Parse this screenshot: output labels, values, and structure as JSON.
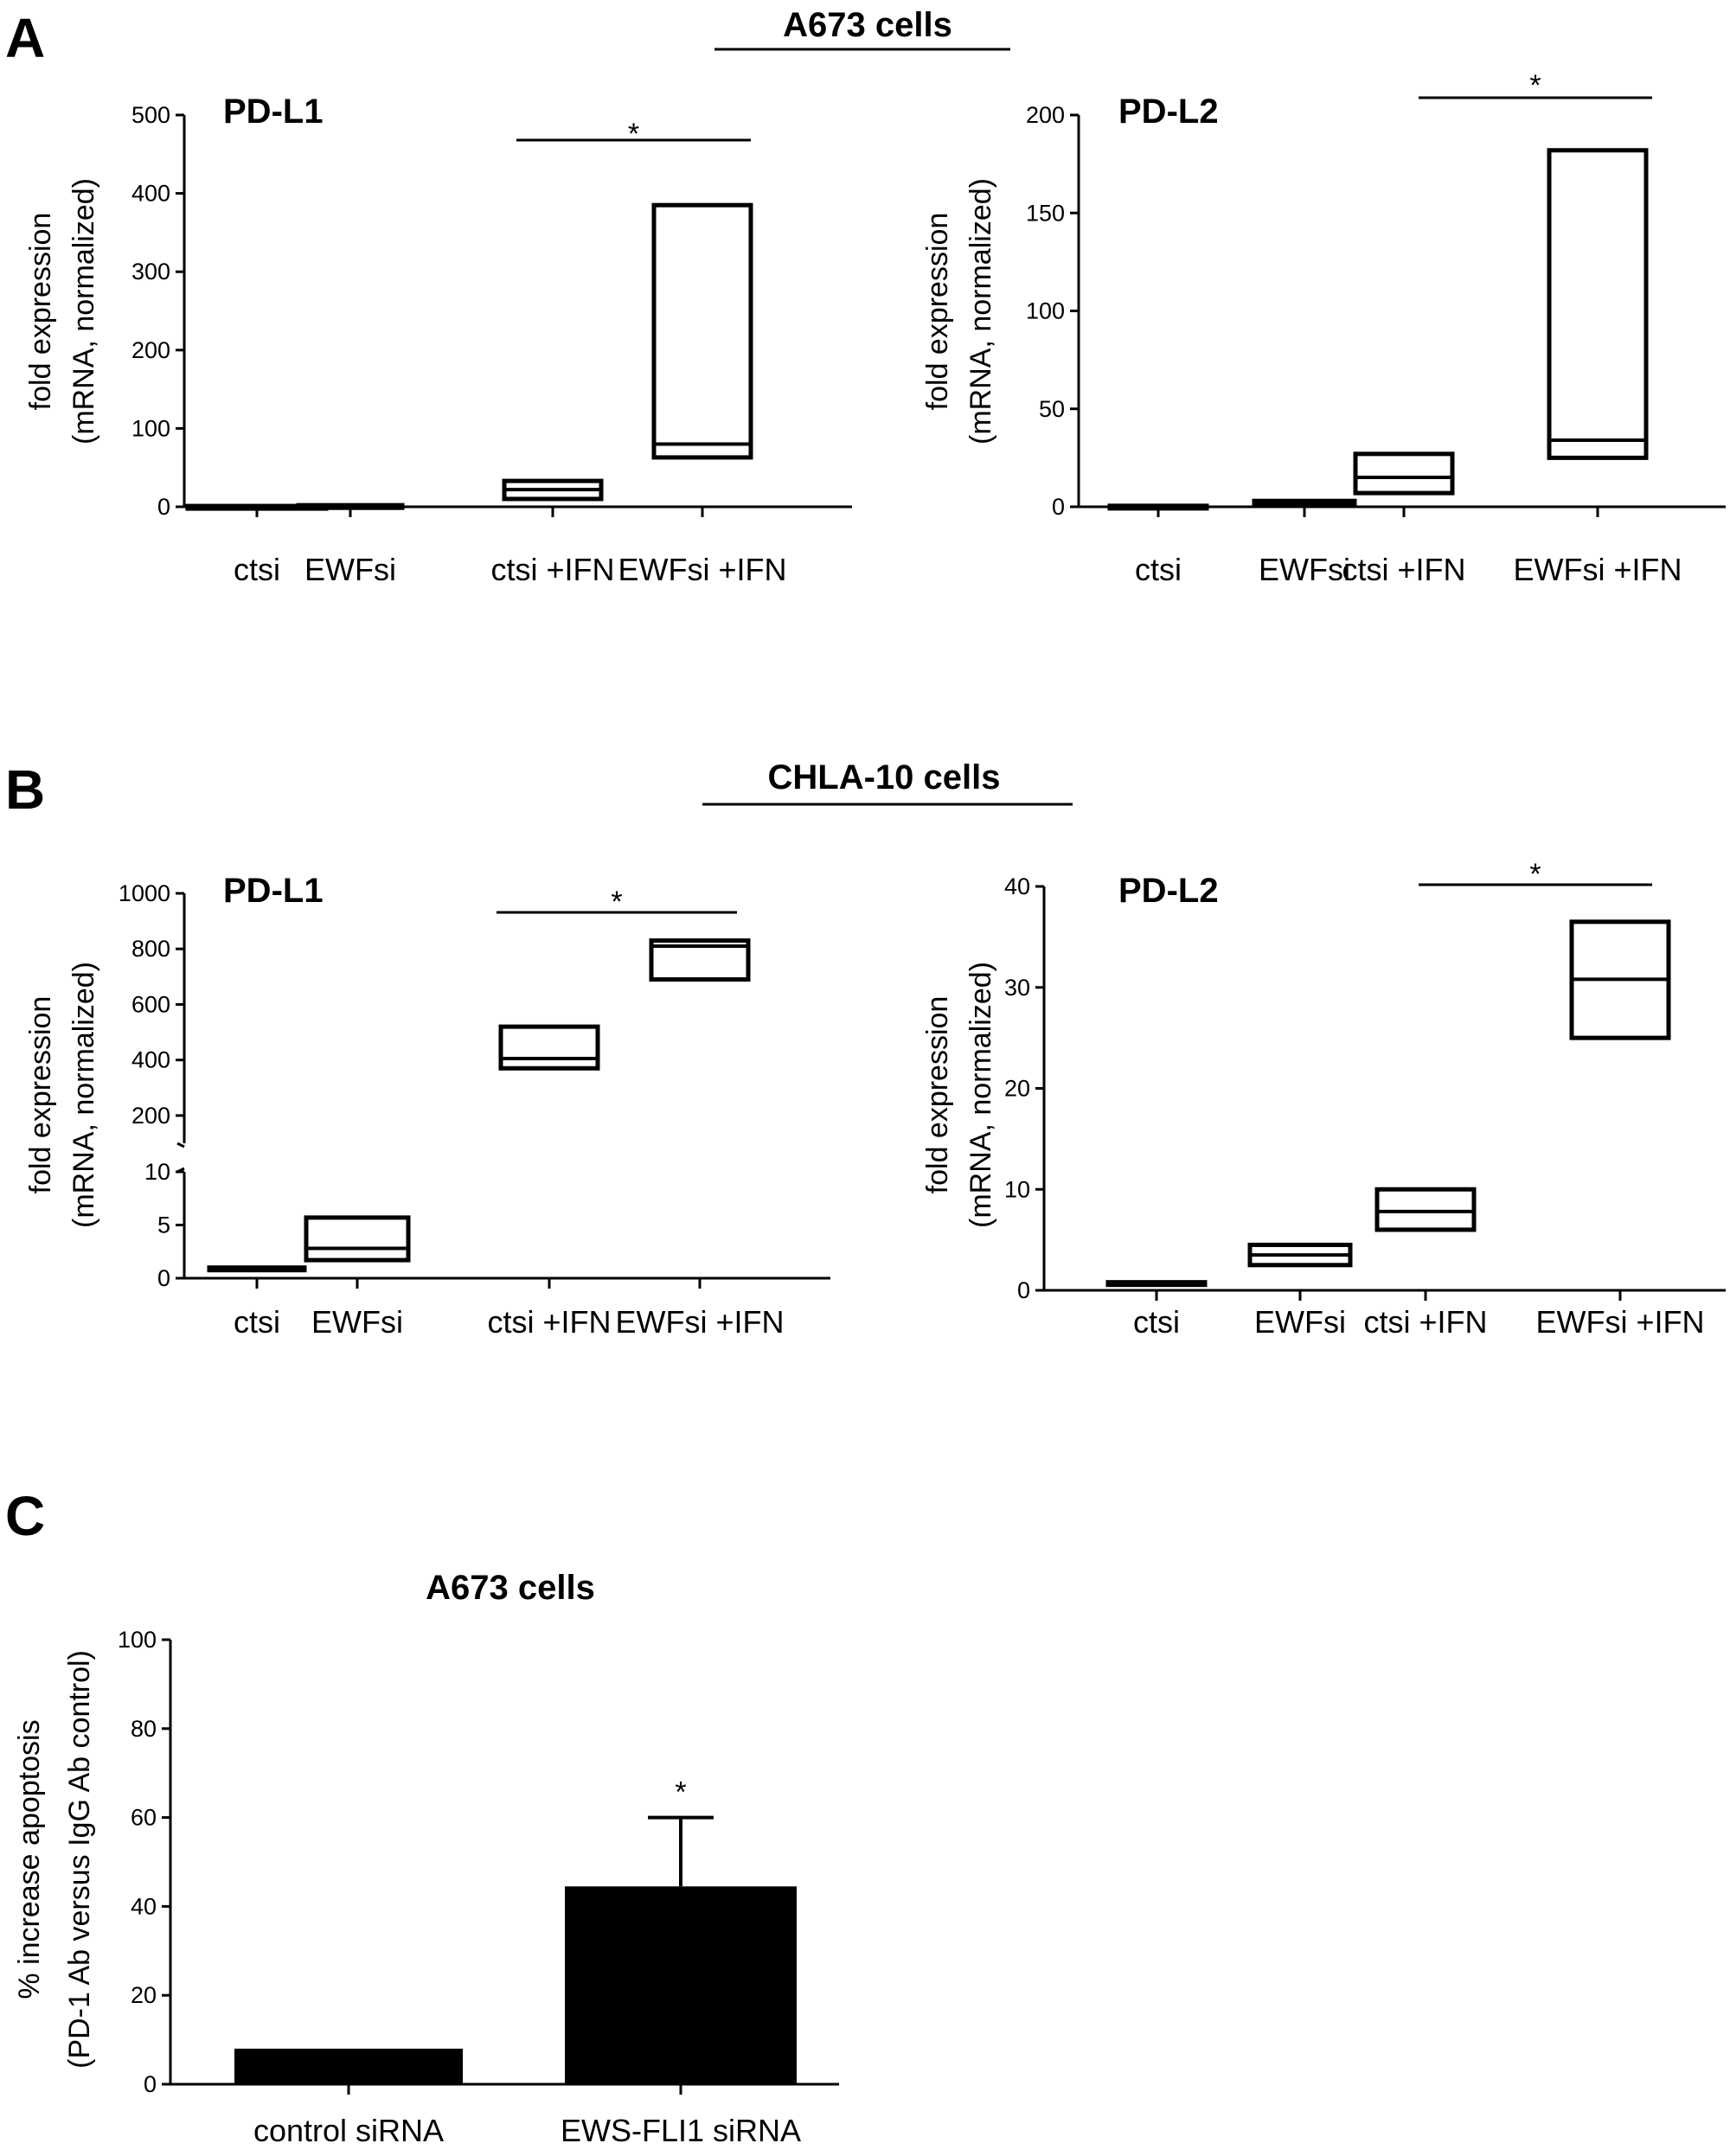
{
  "figure": {
    "panel_letters": [
      "A",
      "B",
      "C"
    ],
    "section_titles": [
      "A673 cells",
      "CHLA-10 cells"
    ]
  },
  "chart_data": [
    {
      "id": "A-PDL1",
      "type": "box",
      "title": "PD-L1",
      "ylabel_lines": [
        "fold expression",
        "(mRNA, normalized)"
      ],
      "categories": [
        "ctsi",
        "EWFsi",
        "ctsi +IFN",
        "EWFsi +IFN"
      ],
      "yticks": [
        0,
        100,
        200,
        300,
        400,
        500
      ],
      "ylim": [
        0,
        500
      ],
      "boxes": [
        {
          "low": 1,
          "median": 1,
          "high": 1
        },
        {
          "low": 1,
          "median": 1.5,
          "high": 2
        },
        {
          "low": 10,
          "median": 22,
          "high": 33
        },
        {
          "low": 63,
          "median": 80,
          "high": 385
        }
      ],
      "significance": {
        "from": 2,
        "to": 3,
        "label": "*"
      }
    },
    {
      "id": "A-PDL2",
      "type": "box",
      "title": "PD-L2",
      "ylabel_lines": [
        "fold expression",
        "(mRNA, normalized)"
      ],
      "categories": [
        "ctsi",
        "EWFsi",
        "ctsi +IFN",
        "EWFsi +IFN"
      ],
      "yticks": [
        0,
        50,
        100,
        150,
        200
      ],
      "ylim": [
        0,
        200
      ],
      "boxes": [
        {
          "low": 0.5,
          "median": 0.5,
          "high": 0.5
        },
        {
          "low": 1,
          "median": 2,
          "high": 3
        },
        {
          "low": 7,
          "median": 15,
          "high": 27
        },
        {
          "low": 25,
          "median": 34,
          "high": 182
        }
      ],
      "significance": {
        "from": 2,
        "to": 3,
        "label": "*"
      }
    },
    {
      "id": "B-PDL1",
      "type": "box",
      "title": "PD-L1",
      "ylabel_lines": [
        "fold expression",
        "(mRNA, normalized)"
      ],
      "categories": [
        "ctsi",
        "EWFsi",
        "ctsi +IFN",
        "EWFsi +IFN"
      ],
      "axis_break": true,
      "lower_segment": {
        "yticks": [
          0,
          5,
          10
        ],
        "ylim": [
          0,
          10
        ]
      },
      "upper_segment": {
        "yticks": [
          200,
          400,
          600,
          800,
          1000
        ],
        "ylim": [
          100,
          1000
        ]
      },
      "boxes": [
        {
          "low": 1,
          "median": 1,
          "high": 1
        },
        {
          "low": 1.7,
          "median": 2.8,
          "high": 5.7
        },
        {
          "low": 370,
          "median": 405,
          "high": 520
        },
        {
          "low": 690,
          "median": 810,
          "high": 830
        }
      ],
      "significance": {
        "from": 2,
        "to": 3,
        "label": "*"
      }
    },
    {
      "id": "B-PDL2",
      "type": "box",
      "title": "PD-L2",
      "ylabel_lines": [
        "fold expression",
        "(mRNA, normalized)"
      ],
      "categories": [
        "ctsi",
        "EWFsi",
        "ctsi +IFN",
        "EWFsi +IFN"
      ],
      "yticks": [
        0,
        10,
        20,
        30,
        40
      ],
      "ylim": [
        0,
        40
      ],
      "boxes": [
        {
          "low": 0.8,
          "median": 0.8,
          "high": 0.8
        },
        {
          "low": 2.5,
          "median": 3.5,
          "high": 4.5
        },
        {
          "low": 6,
          "median": 7.8,
          "high": 10
        },
        {
          "low": 25,
          "median": 30.8,
          "high": 36.5
        }
      ],
      "significance": {
        "from": 2,
        "to": 3,
        "label": "*"
      }
    },
    {
      "id": "C-apoptosis",
      "type": "bar",
      "title": "A673 cells",
      "ylabel_lines": [
        "% increase apoptosis",
        "(PD-1 Ab versus IgG Ab control)"
      ],
      "categories": [
        "control siRNA",
        "EWS-FLI1 siRNA"
      ],
      "values": [
        8,
        44.5
      ],
      "error_upper": [
        8,
        60
      ],
      "yticks": [
        0,
        20,
        40,
        60,
        80,
        100
      ],
      "ylim": [
        0,
        100
      ],
      "significance_markers": [
        {
          "bar": 1,
          "label": "*"
        }
      ]
    }
  ]
}
